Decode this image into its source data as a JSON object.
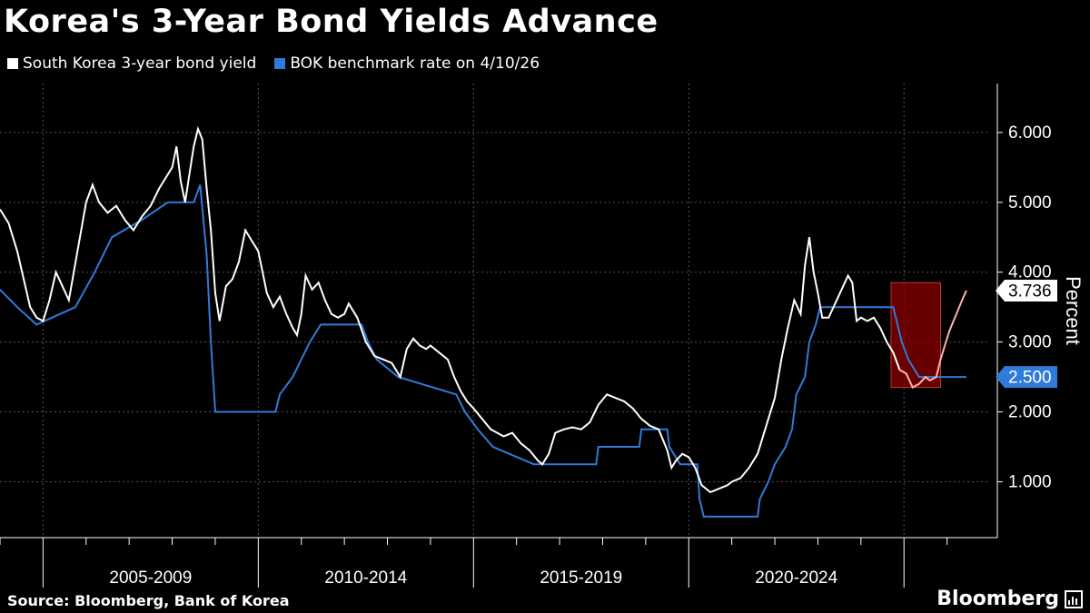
{
  "title": "Korea's 3-Year Bond Yields Advance",
  "legend": [
    {
      "label": "South Korea 3-year bond yield",
      "color": "#ffffff"
    },
    {
      "label": "BOK benchmark rate on 4/10/26",
      "color": "#2f7bd9"
    }
  ],
  "source": "Source: Bloomberg, Bank of Korea",
  "brand": "Bloomberg",
  "chart_data": {
    "type": "line",
    "ylabel": "Percent",
    "ylim": [
      0.2,
      6.7
    ],
    "yticks": [
      "1.000",
      "2.000",
      "3.000",
      "4.000",
      "5.000",
      "6.000"
    ],
    "ytick_values": [
      1,
      2,
      3,
      4,
      5,
      6
    ],
    "xlim": [
      2004.0,
      2027.0
    ],
    "x_period_labels": [
      {
        "label": "2005-2009",
        "center": 2007.5
      },
      {
        "label": "2010-2014",
        "center": 2012.5
      },
      {
        "label": "2015-2019",
        "center": 2017.5
      },
      {
        "label": "2020-2024",
        "center": 2022.5
      }
    ],
    "x_year_ticks": [
      2004,
      2005,
      2006,
      2007,
      2008,
      2009,
      2010,
      2011,
      2012,
      2013,
      2014,
      2015,
      2016,
      2017,
      2018,
      2019,
      2020,
      2021,
      2022,
      2023,
      2024,
      2025,
      2026
    ],
    "x_major_ticks": [
      2005,
      2010,
      2015,
      2020,
      2025
    ],
    "value_labels": [
      {
        "series": "South Korea 3-year bond yield",
        "text": "3.736",
        "value": 3.736
      },
      {
        "series": "BOK benchmark rate on 4/10/26",
        "text": "2.500",
        "value": 2.5
      }
    ],
    "highlight": {
      "x": [
        2024.7,
        2025.85
      ],
      "y": [
        2.35,
        3.85
      ],
      "color": "#8b0000"
    },
    "series": [
      {
        "name": "South Korea 3-year bond yield",
        "color": "#ffffff",
        "points": [
          [
            2004.0,
            4.9
          ],
          [
            2004.2,
            4.7
          ],
          [
            2004.4,
            4.3
          ],
          [
            2004.55,
            3.9
          ],
          [
            2004.7,
            3.5
          ],
          [
            2004.85,
            3.35
          ],
          [
            2005.0,
            3.3
          ],
          [
            2005.15,
            3.6
          ],
          [
            2005.3,
            4.0
          ],
          [
            2005.45,
            3.8
          ],
          [
            2005.6,
            3.6
          ],
          [
            2005.8,
            4.3
          ],
          [
            2006.0,
            5.0
          ],
          [
            2006.15,
            5.25
          ],
          [
            2006.3,
            5.0
          ],
          [
            2006.5,
            4.85
          ],
          [
            2006.7,
            4.95
          ],
          [
            2006.9,
            4.75
          ],
          [
            2007.1,
            4.6
          ],
          [
            2007.3,
            4.8
          ],
          [
            2007.5,
            4.95
          ],
          [
            2007.7,
            5.2
          ],
          [
            2007.9,
            5.4
          ],
          [
            2008.0,
            5.5
          ],
          [
            2008.1,
            5.8
          ],
          [
            2008.2,
            5.3
          ],
          [
            2008.3,
            5.0
          ],
          [
            2008.4,
            5.4
          ],
          [
            2008.5,
            5.8
          ],
          [
            2008.6,
            6.05
          ],
          [
            2008.7,
            5.9
          ],
          [
            2008.8,
            5.2
          ],
          [
            2008.9,
            4.6
          ],
          [
            2009.0,
            3.7
          ],
          [
            2009.1,
            3.3
          ],
          [
            2009.25,
            3.8
          ],
          [
            2009.4,
            3.9
          ],
          [
            2009.55,
            4.15
          ],
          [
            2009.7,
            4.6
          ],
          [
            2009.85,
            4.45
          ],
          [
            2010.0,
            4.3
          ],
          [
            2010.1,
            4.0
          ],
          [
            2010.2,
            3.7
          ],
          [
            2010.35,
            3.5
          ],
          [
            2010.5,
            3.65
          ],
          [
            2010.65,
            3.4
          ],
          [
            2010.8,
            3.2
          ],
          [
            2010.9,
            3.1
          ],
          [
            2011.0,
            3.4
          ],
          [
            2011.1,
            3.95
          ],
          [
            2011.25,
            3.75
          ],
          [
            2011.4,
            3.85
          ],
          [
            2011.55,
            3.6
          ],
          [
            2011.7,
            3.4
          ],
          [
            2011.85,
            3.35
          ],
          [
            2012.0,
            3.4
          ],
          [
            2012.1,
            3.55
          ],
          [
            2012.3,
            3.35
          ],
          [
            2012.5,
            3.0
          ],
          [
            2012.7,
            2.8
          ],
          [
            2012.9,
            2.75
          ],
          [
            2013.1,
            2.7
          ],
          [
            2013.2,
            2.6
          ],
          [
            2013.3,
            2.5
          ],
          [
            2013.45,
            2.9
          ],
          [
            2013.6,
            3.05
          ],
          [
            2013.75,
            2.95
          ],
          [
            2013.9,
            2.9
          ],
          [
            2014.0,
            2.95
          ],
          [
            2014.2,
            2.85
          ],
          [
            2014.4,
            2.75
          ],
          [
            2014.55,
            2.5
          ],
          [
            2014.7,
            2.3
          ],
          [
            2014.85,
            2.15
          ],
          [
            2015.0,
            2.05
          ],
          [
            2015.2,
            1.9
          ],
          [
            2015.4,
            1.75
          ],
          [
            2015.55,
            1.7
          ],
          [
            2015.7,
            1.65
          ],
          [
            2015.9,
            1.7
          ],
          [
            2016.1,
            1.55
          ],
          [
            2016.3,
            1.45
          ],
          [
            2016.5,
            1.3
          ],
          [
            2016.6,
            1.25
          ],
          [
            2016.75,
            1.4
          ],
          [
            2016.9,
            1.7
          ],
          [
            2017.1,
            1.75
          ],
          [
            2017.3,
            1.78
          ],
          [
            2017.5,
            1.75
          ],
          [
            2017.7,
            1.85
          ],
          [
            2017.9,
            2.1
          ],
          [
            2018.1,
            2.25
          ],
          [
            2018.3,
            2.2
          ],
          [
            2018.5,
            2.15
          ],
          [
            2018.7,
            2.05
          ],
          [
            2018.9,
            1.9
          ],
          [
            2019.1,
            1.8
          ],
          [
            2019.3,
            1.75
          ],
          [
            2019.5,
            1.45
          ],
          [
            2019.6,
            1.2
          ],
          [
            2019.7,
            1.3
          ],
          [
            2019.85,
            1.4
          ],
          [
            2020.0,
            1.35
          ],
          [
            2020.15,
            1.2
          ],
          [
            2020.3,
            0.95
          ],
          [
            2020.5,
            0.85
          ],
          [
            2020.7,
            0.9
          ],
          [
            2020.9,
            0.95
          ],
          [
            2021.0,
            1.0
          ],
          [
            2021.2,
            1.05
          ],
          [
            2021.4,
            1.2
          ],
          [
            2021.6,
            1.4
          ],
          [
            2021.75,
            1.7
          ],
          [
            2021.9,
            2.0
          ],
          [
            2022.0,
            2.2
          ],
          [
            2022.15,
            2.75
          ],
          [
            2022.3,
            3.2
          ],
          [
            2022.45,
            3.6
          ],
          [
            2022.6,
            3.4
          ],
          [
            2022.7,
            4.1
          ],
          [
            2022.8,
            4.5
          ],
          [
            2022.9,
            4.0
          ],
          [
            2023.0,
            3.7
          ],
          [
            2023.1,
            3.35
          ],
          [
            2023.25,
            3.35
          ],
          [
            2023.4,
            3.55
          ],
          [
            2023.55,
            3.75
          ],
          [
            2023.7,
            3.95
          ],
          [
            2023.8,
            3.85
          ],
          [
            2023.9,
            3.3
          ],
          [
            2024.0,
            3.35
          ],
          [
            2024.15,
            3.3
          ],
          [
            2024.3,
            3.35
          ],
          [
            2024.45,
            3.2
          ],
          [
            2024.6,
            3.0
          ],
          [
            2024.75,
            2.85
          ],
          [
            2024.9,
            2.6
          ],
          [
            2025.05,
            2.55
          ],
          [
            2025.2,
            2.35
          ],
          [
            2025.35,
            2.4
          ],
          [
            2025.5,
            2.5
          ],
          [
            2025.6,
            2.45
          ],
          [
            2025.75,
            2.5
          ],
          [
            2025.85,
            2.75
          ],
          [
            2025.95,
            2.95
          ],
          [
            2026.05,
            3.15
          ],
          [
            2026.15,
            3.3
          ],
          [
            2026.25,
            3.45
          ],
          [
            2026.35,
            3.6
          ],
          [
            2026.45,
            3.736
          ]
        ]
      },
      {
        "name": "BOK benchmark rate on 4/10/26",
        "color": "#2f7bd9",
        "points": [
          [
            2004.0,
            3.75
          ],
          [
            2004.4,
            3.5
          ],
          [
            2004.85,
            3.25
          ],
          [
            2005.75,
            3.5
          ],
          [
            2006.2,
            4.0
          ],
          [
            2006.6,
            4.5
          ],
          [
            2007.3,
            4.75
          ],
          [
            2007.9,
            5.0
          ],
          [
            2008.5,
            5.0
          ],
          [
            2008.65,
            5.25
          ],
          [
            2008.8,
            4.25
          ],
          [
            2008.9,
            3.0
          ],
          [
            2009.0,
            2.0
          ],
          [
            2010.4,
            2.0
          ],
          [
            2010.5,
            2.25
          ],
          [
            2010.8,
            2.5
          ],
          [
            2011.0,
            2.75
          ],
          [
            2011.2,
            3.0
          ],
          [
            2011.45,
            3.25
          ],
          [
            2012.4,
            3.25
          ],
          [
            2012.55,
            3.0
          ],
          [
            2012.75,
            2.75
          ],
          [
            2013.25,
            2.5
          ],
          [
            2014.6,
            2.25
          ],
          [
            2014.8,
            2.0
          ],
          [
            2015.1,
            1.75
          ],
          [
            2015.45,
            1.5
          ],
          [
            2016.4,
            1.25
          ],
          [
            2017.85,
            1.25
          ],
          [
            2017.9,
            1.5
          ],
          [
            2018.85,
            1.5
          ],
          [
            2018.9,
            1.75
          ],
          [
            2019.5,
            1.75
          ],
          [
            2019.55,
            1.5
          ],
          [
            2019.8,
            1.25
          ],
          [
            2020.2,
            1.25
          ],
          [
            2020.25,
            0.75
          ],
          [
            2020.35,
            0.5
          ],
          [
            2021.6,
            0.5
          ],
          [
            2021.65,
            0.75
          ],
          [
            2021.85,
            1.0
          ],
          [
            2022.0,
            1.25
          ],
          [
            2022.25,
            1.5
          ],
          [
            2022.4,
            1.75
          ],
          [
            2022.5,
            2.25
          ],
          [
            2022.7,
            2.5
          ],
          [
            2022.8,
            3.0
          ],
          [
            2022.95,
            3.25
          ],
          [
            2023.05,
            3.5
          ],
          [
            2024.75,
            3.5
          ],
          [
            2024.85,
            3.25
          ],
          [
            2024.95,
            3.0
          ],
          [
            2025.1,
            2.75
          ],
          [
            2025.35,
            2.5
          ],
          [
            2026.45,
            2.5
          ]
        ]
      }
    ]
  }
}
